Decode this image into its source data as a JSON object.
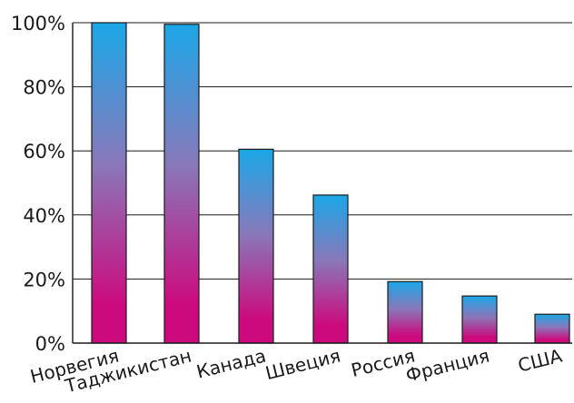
{
  "chart_data": {
    "type": "bar",
    "categories": [
      "Норвегия",
      "Таджикистан",
      "Канада",
      "Швеция",
      "Россия",
      "Франция",
      "США"
    ],
    "values": [
      100,
      99.5,
      60.5,
      46.2,
      19.2,
      14.7,
      9.0
    ],
    "ylim": [
      0,
      100
    ],
    "yticks": [
      0,
      20,
      40,
      60,
      80,
      100
    ],
    "ytick_labels": [
      "0%",
      "20%",
      "40%",
      "60%",
      "80%",
      "100%"
    ],
    "grid": true,
    "title": "",
    "xlabel": "",
    "ylabel": "",
    "colors": {
      "bar_top": "#1aa6e6",
      "bar_mid": "#8a76b8",
      "bar_bottom": "#cc0a7e"
    }
  }
}
